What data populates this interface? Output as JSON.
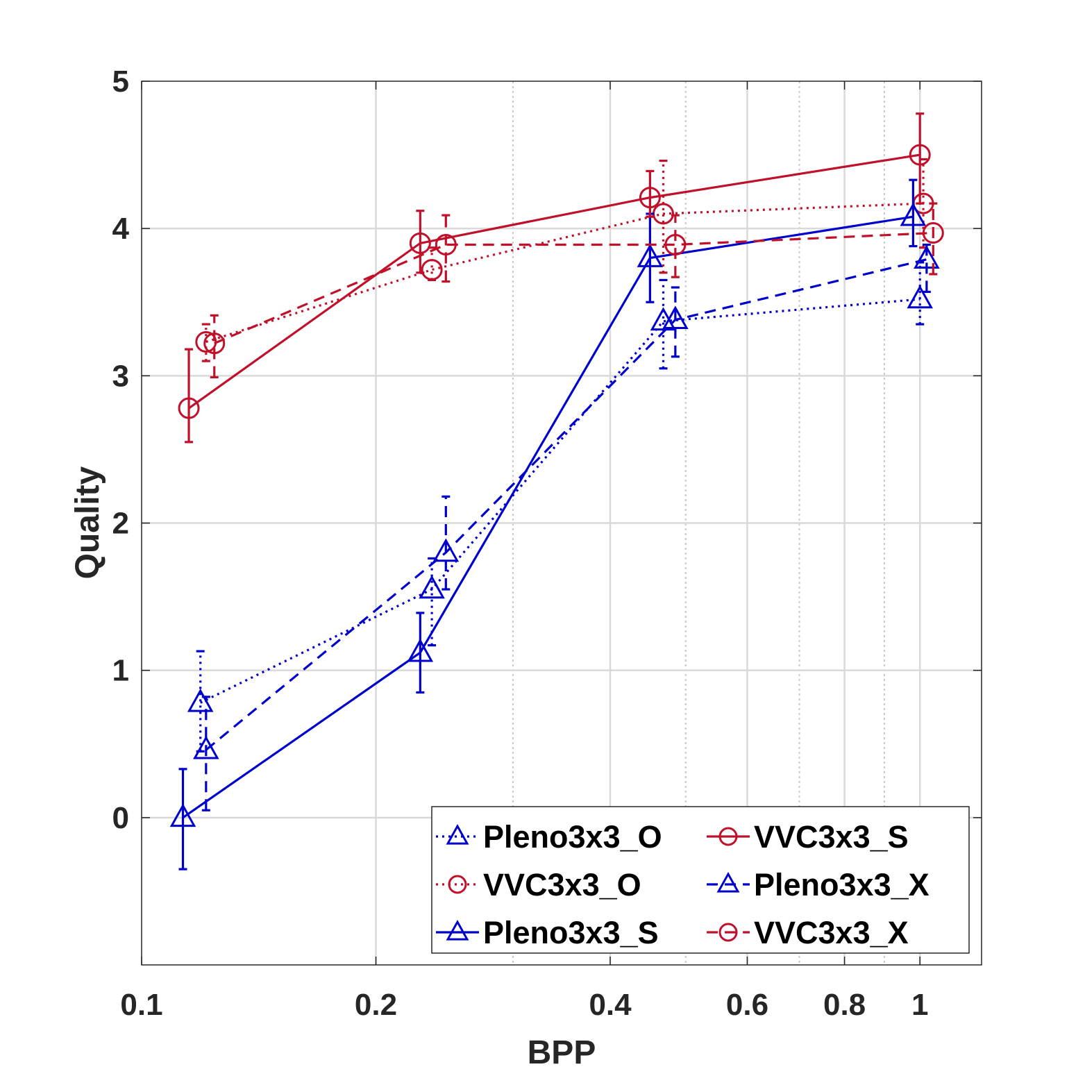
{
  "chart_data": {
    "type": "line",
    "title": "",
    "xlabel": "BPP",
    "ylabel": "Quality",
    "xscale": "log",
    "xlim": [
      0.1,
      1.2
    ],
    "ylim": [
      -1,
      5
    ],
    "xticks": [
      {
        "value": 0.1,
        "label": "0.1"
      },
      {
        "value": 0.2,
        "label": "0.2"
      },
      {
        "value": 0.4,
        "label": "0.4"
      },
      {
        "value": 0.6,
        "label": "0.6"
      },
      {
        "value": 0.8,
        "label": "0.8"
      },
      {
        "value": 1.0,
        "label": "1"
      }
    ],
    "yticks": [
      {
        "value": 0,
        "label": "0"
      },
      {
        "value": 1,
        "label": "1"
      },
      {
        "value": 2,
        "label": "2"
      },
      {
        "value": 3,
        "label": "3"
      },
      {
        "value": 4,
        "label": "4"
      },
      {
        "value": 5,
        "label": "5"
      }
    ],
    "minor_x_gridlines": [
      0.3,
      0.5,
      0.7,
      0.9
    ],
    "grid": true,
    "legend_position": "bottom-right",
    "legend_order": [
      "Pleno3x3_O",
      "VVC3x3_O",
      "Pleno3x3_S",
      "VVC3x3_S",
      "Pleno3x3_X",
      "VVC3x3_X"
    ],
    "series": [
      {
        "name": "Pleno3x3_O",
        "color": "#0000cc",
        "line_style": "dotted",
        "marker": "triangle",
        "x": [
          0.119,
          0.236,
          0.468,
          1.0
        ],
        "y": [
          0.78,
          1.55,
          3.37,
          3.52
        ],
        "err_low": [
          0.33,
          0.38,
          0.32,
          0.17
        ],
        "err_high": [
          0.35,
          0.21,
          0.28,
          0.25
        ]
      },
      {
        "name": "VVC3x3_O",
        "color": "#c0102a",
        "line_style": "dotted",
        "marker": "circle",
        "x": [
          0.121,
          0.236,
          0.468,
          1.01
        ],
        "y": [
          3.23,
          3.72,
          4.1,
          4.17
        ],
        "err_low": [
          0.13,
          0.07,
          0.4,
          0.3
        ],
        "err_high": [
          0.12,
          0.15,
          0.36,
          0.3
        ]
      },
      {
        "name": "Pleno3x3_S",
        "color": "#0000cc",
        "line_style": "solid",
        "marker": "triangle",
        "x": [
          0.113,
          0.228,
          0.45,
          0.98
        ],
        "y": [
          0.0,
          1.12,
          3.8,
          4.08
        ],
        "err_low": [
          0.35,
          0.27,
          0.3,
          0.2
        ],
        "err_high": [
          0.33,
          0.27,
          0.3,
          0.25
        ]
      },
      {
        "name": "VVC3x3_S",
        "color": "#c0102a",
        "line_style": "solid",
        "marker": "circle",
        "x": [
          0.115,
          0.228,
          0.45,
          1.0
        ],
        "y": [
          2.78,
          3.9,
          4.21,
          4.5
        ],
        "err_low": [
          0.23,
          0.2,
          0.13,
          0.33
        ],
        "err_high": [
          0.4,
          0.22,
          0.18,
          0.28
        ]
      },
      {
        "name": "Pleno3x3_X",
        "color": "#0000cc",
        "line_style": "dashed",
        "marker": "triangle",
        "x": [
          0.121,
          0.246,
          0.485,
          1.02
        ],
        "y": [
          0.46,
          1.8,
          3.38,
          3.79
        ],
        "err_low": [
          0.41,
          0.25,
          0.25,
          0.22
        ],
        "err_high": [
          0.36,
          0.38,
          0.22,
          0.1
        ]
      },
      {
        "name": "VVC3x3_X",
        "color": "#c0102a",
        "line_style": "dashed",
        "marker": "circle",
        "x": [
          0.124,
          0.246,
          0.485,
          1.04
        ],
        "y": [
          3.22,
          3.89,
          3.89,
          3.97
        ],
        "err_low": [
          0.23,
          0.25,
          0.22,
          0.28
        ],
        "err_high": [
          0.19,
          0.2,
          0.2,
          0.2
        ]
      }
    ]
  }
}
